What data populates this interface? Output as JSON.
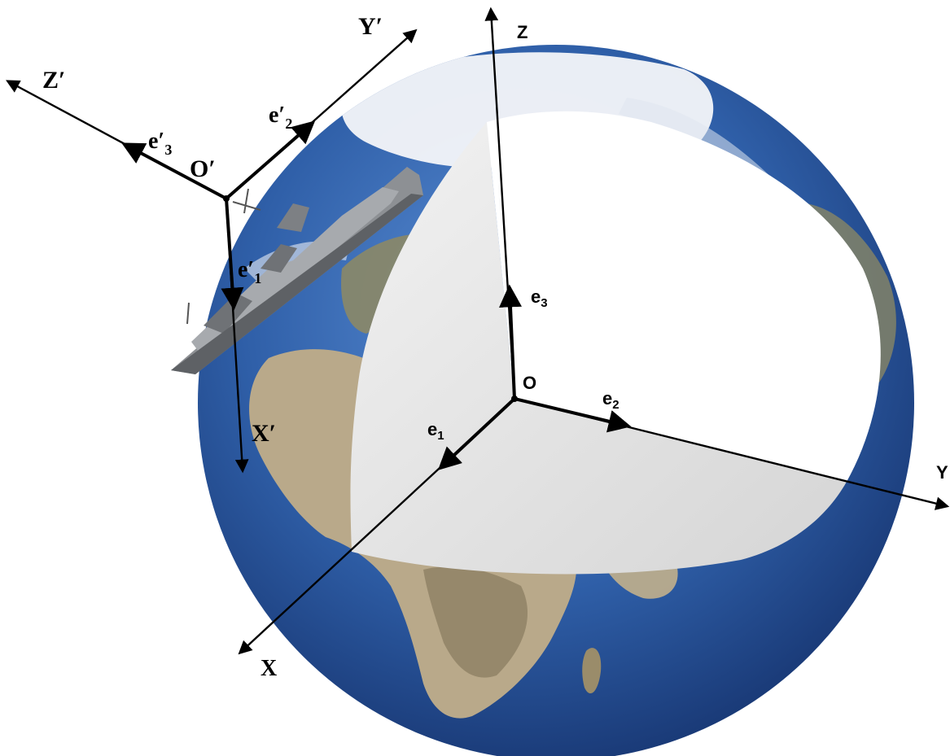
{
  "figure": {
    "earth_frame": {
      "origin": "O",
      "axes": {
        "x": "X",
        "y": "Y",
        "z": "Z"
      },
      "unit_vectors": {
        "e1": "e",
        "e1_sub": "1",
        "e2": "e",
        "e2_sub": "2",
        "e3": "e",
        "e3_sub": "3"
      }
    },
    "ship_frame": {
      "origin": "O′",
      "axes": {
        "x": "X′",
        "y": "Y′",
        "z": "Z′"
      },
      "unit_vectors": {
        "e1": "e′",
        "e1_sub": "1",
        "e2": "e′",
        "e2_sub": "2",
        "e3": "e′",
        "e3_sub": "3"
      }
    },
    "colors": {
      "ocean": "#2f5fa8",
      "ocean_deep": "#17336e",
      "land": "#b9a98a",
      "land_dark": "#7a6e52",
      "cutaway": "#e3e3e3",
      "cloud": "#f4f6f9",
      "ship": "#8d9094",
      "axis": "#000000"
    }
  }
}
